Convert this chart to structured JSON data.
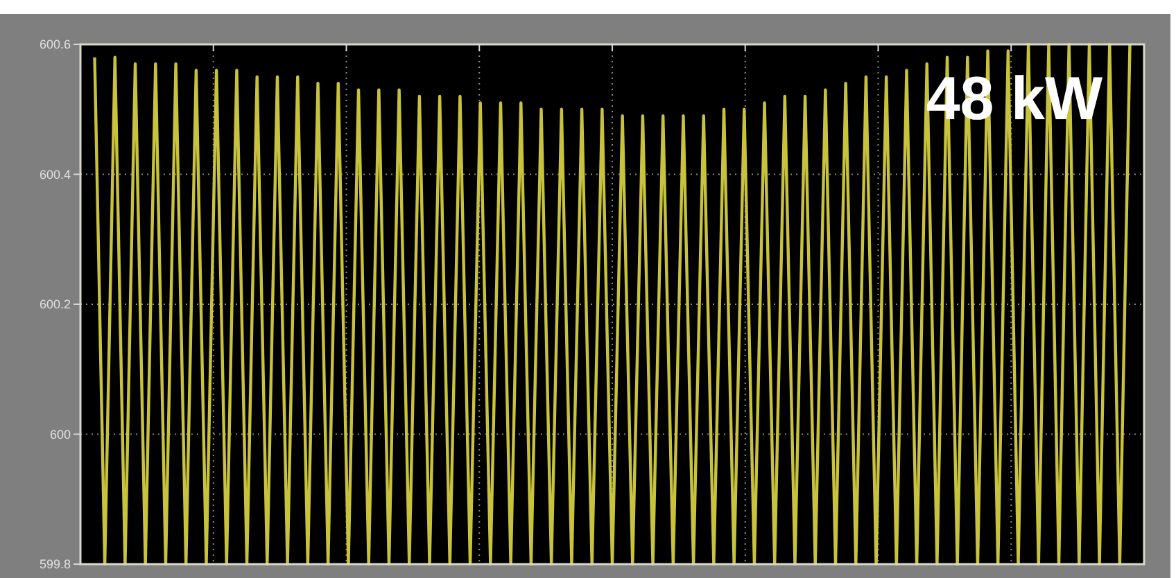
{
  "chart_data": {
    "type": "line",
    "annotations": [
      "48 kW"
    ],
    "categories": [
      null,
      null,
      null,
      null,
      null,
      null,
      null,
      null,
      null,
      null,
      null,
      null,
      null,
      null,
      null,
      null,
      null,
      null,
      null,
      null,
      null,
      null,
      null,
      null,
      null,
      null,
      null,
      null,
      null,
      null,
      null,
      null,
      null,
      null,
      null,
      null,
      null,
      null,
      null,
      null,
      null,
      null,
      null,
      null,
      null,
      null,
      null,
      null,
      null,
      null,
      null,
      null,
      null,
      null,
      null,
      null,
      null,
      null,
      null,
      null,
      null,
      null,
      null,
      null,
      null,
      null,
      null,
      null,
      null,
      null,
      null,
      null,
      null,
      null,
      null,
      null,
      null,
      null,
      null,
      null,
      null,
      null,
      null,
      null,
      null,
      null,
      null,
      null,
      null,
      null,
      null,
      null,
      null,
      null,
      null,
      null,
      null,
      null,
      null,
      null,
      null,
      null,
      null
    ],
    "series": [
      {
        "color": "#c9c23c",
        "values": [
          600.58,
          599.8,
          600.58,
          599.8,
          600.57,
          599.8,
          600.57,
          599.8,
          600.57,
          599.8,
          600.56,
          599.8,
          600.56,
          599.8,
          600.56,
          599.8,
          600.55,
          599.8,
          600.55,
          599.8,
          600.55,
          599.8,
          600.54,
          599.8,
          600.54,
          599.8,
          600.53,
          599.8,
          600.53,
          599.8,
          600.53,
          599.8,
          600.52,
          599.8,
          600.52,
          599.8,
          600.52,
          599.8,
          600.51,
          599.8,
          600.51,
          599.8,
          600.51,
          599.8,
          600.5,
          599.8,
          600.5,
          599.8,
          600.5,
          599.8,
          600.5,
          599.8,
          600.49,
          599.8,
          600.49,
          599.8,
          600.49,
          599.8,
          600.49,
          599.8,
          600.49,
          599.8,
          600.5,
          599.8,
          600.5,
          599.8,
          600.51,
          599.8,
          600.52,
          599.8,
          600.52,
          599.8,
          600.53,
          599.8,
          600.54,
          599.8,
          600.55,
          599.8,
          600.55,
          599.8,
          600.56,
          599.8,
          600.57,
          599.8,
          600.58,
          599.8,
          600.58,
          599.8,
          600.59,
          599.8,
          600.59,
          599.8,
          600.6,
          599.8,
          600.6,
          599.8,
          600.6,
          599.8,
          600.6,
          599.8,
          600.6,
          599.8,
          600.6
        ]
      }
    ],
    "ylim": [
      599.8,
      600.6
    ],
    "yticks": [
      599.8,
      600,
      600.2,
      600.4,
      600.6
    ],
    "grid": true,
    "marker": "none",
    "line_style": "solid"
  }
}
